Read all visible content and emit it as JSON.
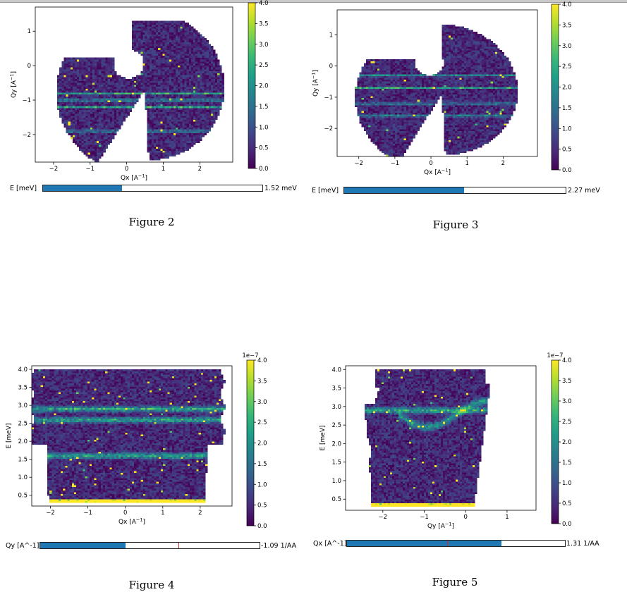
{
  "colormap": {
    "name": "viridis",
    "stops": [
      "#440154",
      "#482878",
      "#3e4989",
      "#31688e",
      "#26828e",
      "#1f9e89",
      "#35b779",
      "#6ece58",
      "#b5de2b",
      "#fde725"
    ]
  },
  "chart_data": [
    {
      "type": "heatmap",
      "caption": "Figure 2",
      "xlabel": "Qx [A^-1]",
      "ylabel": "Qy [A^-1]",
      "xlim": [
        -2.5,
        2.9
      ],
      "ylim": [
        -2.8,
        1.7
      ],
      "x_ticks": [
        -2,
        -1,
        0,
        1,
        2
      ],
      "y_ticks": [
        -2,
        -1,
        0,
        1
      ],
      "colorbar": {
        "min": 0.0,
        "max": 4.0,
        "ticks": [
          "0.0",
          "0.5",
          "1.0",
          "1.5",
          "2.0",
          "2.5",
          "3.0",
          "3.5",
          "4.0"
        ],
        "offset": ""
      },
      "bands": [
        -1.0,
        -0.8,
        -1.9,
        -1.2
      ],
      "slider": {
        "label": "E [meV]",
        "fill_fraction": 0.36,
        "marker_fraction": null,
        "value": "1.52 meV"
      }
    },
    {
      "type": "heatmap",
      "caption": "Figure 3",
      "xlabel": "Qx [A^-1]",
      "ylabel": "Qy [A^-1]",
      "xlim": [
        -2.6,
        2.95
      ],
      "ylim": [
        -2.9,
        1.8
      ],
      "x_ticks": [
        -2,
        -1,
        0,
        1,
        2
      ],
      "y_ticks": [
        -2,
        -1,
        0,
        1
      ],
      "colorbar": {
        "min": 0.0,
        "max": 4.0,
        "ticks": [
          "0.0",
          "0.5",
          "1.0",
          "1.5",
          "2.0",
          "2.5",
          "3.0",
          "3.5",
          "4.0"
        ],
        "offset": ""
      },
      "bands": [
        -0.3,
        -0.7,
        -1.2,
        -1.6
      ],
      "slider": {
        "label": "E [meV]",
        "fill_fraction": 0.54,
        "marker_fraction": null,
        "value": "2.27 meV"
      }
    },
    {
      "type": "heatmap",
      "caption": "Figure 4",
      "xlabel": "Qx [A^-1]",
      "ylabel": "E [meV]",
      "xlim": [
        -2.5,
        2.85
      ],
      "ylim": [
        0.2,
        4.1
      ],
      "x_ticks": [
        -2,
        -1,
        0,
        1,
        2
      ],
      "y_ticks": [
        "0.5",
        "1.0",
        "1.5",
        "2.0",
        "2.5",
        "3.0",
        "3.5",
        "4.0"
      ],
      "colorbar": {
        "min": 0.0,
        "max": 4.0,
        "ticks": [
          "0.0",
          "0.5",
          "1.0",
          "1.5",
          "2.0",
          "2.5",
          "3.0",
          "3.5",
          "4.0"
        ],
        "offset": "1e−7"
      },
      "bands": [
        2.9,
        2.6,
        1.6,
        0.3
      ],
      "slider": {
        "label": "Qy [A^-1]",
        "fill_fraction": 0.39,
        "marker_fraction": 0.63,
        "value": "-1.09 1/AA"
      }
    },
    {
      "type": "heatmap",
      "caption": "Figure 5",
      "xlabel": "Qy [A^-1]",
      "ylabel": "E [meV]",
      "xlim": [
        -2.9,
        1.7
      ],
      "ylim": [
        0.2,
        4.1
      ],
      "x_ticks": [
        -2,
        -1,
        0,
        1
      ],
      "y_ticks": [
        "0.5",
        "1.0",
        "1.5",
        "2.0",
        "2.5",
        "3.0",
        "3.5",
        "4.0"
      ],
      "colorbar": {
        "min": 0.0,
        "max": 4.0,
        "ticks": [
          "0.0",
          "0.5",
          "1.0",
          "1.5",
          "2.0",
          "2.5",
          "3.0",
          "3.5",
          "4.0"
        ],
        "offset": "1e−7"
      },
      "bands": [
        2.9,
        0.3
      ],
      "slider": {
        "label": "Qx [A^-1]",
        "fill_fraction": 0.71,
        "marker_fraction": 0.46,
        "value": "1.31 1/AA"
      }
    }
  ]
}
